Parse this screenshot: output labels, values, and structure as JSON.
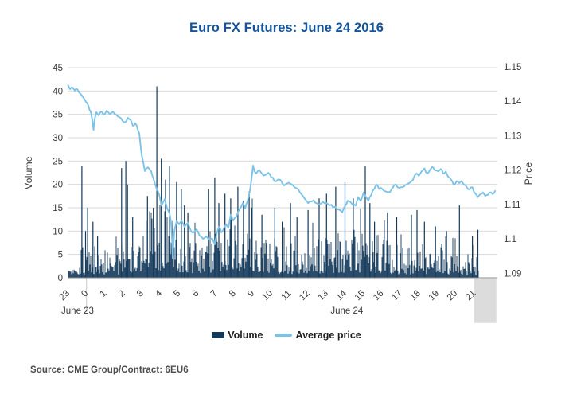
{
  "title": "Euro FX Futures: June 24 2016",
  "source": "Source: CME Group/Contract: 6EU6",
  "legend": [
    {
      "label": "Volume",
      "type": "bar",
      "color": "#13395B"
    },
    {
      "label": "Average price",
      "type": "line",
      "color": "#7CC3E8"
    }
  ],
  "colors": {
    "title": "#15549B",
    "bar": "#13395B",
    "line": "#7CC3E8",
    "grid": "#D9D9D9",
    "axis_line": "#8C8C8C",
    "separator": "#CBCBCB",
    "end_band": "#DCDCDC",
    "tick_text": "#3A3A3A"
  },
  "chart_data": {
    "type": "combo",
    "subtype": [
      "bar",
      "line"
    ],
    "title": "Euro FX Futures: June 24 2016",
    "grid": "horizontal-only",
    "legend_position": "bottom-center",
    "x_axis": {
      "unit": "hour of day (minute-level data), from 23:00 June 23 to ~21:15 June 24",
      "tick_labels": [
        "23",
        "0",
        "1",
        "2",
        "3",
        "4",
        "5",
        "6",
        "7",
        "8",
        "9",
        "10",
        "11",
        "12",
        "13",
        "14",
        "15",
        "16",
        "17",
        "18",
        "19",
        "20",
        "21"
      ],
      "tick_label_rotation_deg": -45,
      "date_labels": [
        {
          "label": "June 23",
          "center_t": 0.5
        },
        {
          "label": "June 24",
          "center_t": 15.1
        }
      ],
      "date_separators_t": [
        0,
        1
      ],
      "end_shaded_band_t": [
        22.1,
        23.2
      ]
    },
    "volume_axis": {
      "label": "Volume",
      "side": "left",
      "ticks": [
        45,
        40,
        35,
        30,
        25,
        20,
        15,
        10,
        5,
        0
      ],
      "range": [
        0,
        45
      ]
    },
    "price_axis": {
      "label": "Price",
      "side": "right",
      "ticks": [
        "1.15",
        "1.14",
        "1.13",
        "1.12",
        "1.11",
        "1.1",
        "1.09"
      ],
      "range": [
        1.09,
        1.15
      ]
    },
    "time_unit_note": "t = hours elapsed since 23:00 on June 23",
    "volume": {
      "name": "Volume",
      "style": "dense one-minute bars",
      "t_range": [
        0,
        22.22
      ],
      "envelope_hourly_typical_max": [
        3.5,
        8,
        6,
        11,
        16,
        15,
        9,
        10,
        14,
        14,
        11,
        8,
        8,
        9,
        10,
        11,
        11,
        8,
        7,
        8,
        6.5,
        6,
        4
      ],
      "spikes": [
        [
          0.75,
          24
        ],
        [
          0.95,
          10
        ],
        [
          1.06,
          15
        ],
        [
          1.35,
          12
        ],
        [
          1.6,
          9
        ],
        [
          2.9,
          23.5
        ],
        [
          3.13,
          25
        ],
        [
          3.22,
          20
        ],
        [
          3.5,
          13
        ],
        [
          4.3,
          17.5
        ],
        [
          4.62,
          15
        ],
        [
          4.81,
          41
        ],
        [
          5.05,
          25.5
        ],
        [
          5.28,
          21
        ],
        [
          5.5,
          24
        ],
        [
          5.88,
          20.5
        ],
        [
          6.14,
          19
        ],
        [
          6.3,
          15.5
        ],
        [
          6.49,
          14
        ],
        [
          7.6,
          19
        ],
        [
          7.95,
          21.5
        ],
        [
          8.17,
          16
        ],
        [
          8.5,
          18
        ],
        [
          8.81,
          17
        ],
        [
          9.2,
          19.5
        ],
        [
          9.5,
          16.5
        ],
        [
          9.81,
          18.5
        ],
        [
          9.95,
          15
        ],
        [
          10.5,
          13.5
        ],
        [
          11.2,
          15
        ],
        [
          11.6,
          12
        ],
        [
          12.05,
          16
        ],
        [
          12.4,
          13
        ],
        [
          13.0,
          14.5
        ],
        [
          13.6,
          17
        ],
        [
          14.0,
          18
        ],
        [
          14.5,
          19.5
        ],
        [
          15.0,
          20.5
        ],
        [
          15.45,
          17
        ],
        [
          16.1,
          24
        ],
        [
          16.35,
          16
        ],
        [
          16.6,
          12
        ],
        [
          17.3,
          14
        ],
        [
          17.8,
          13
        ],
        [
          18.6,
          13.5
        ],
        [
          18.9,
          14.5
        ],
        [
          19.3,
          12
        ],
        [
          19.9,
          11
        ],
        [
          20.5,
          10
        ],
        [
          21.2,
          15.5
        ],
        [
          21.9,
          9
        ],
        [
          22.2,
          10.3
        ]
      ]
    },
    "price_series": {
      "name": "Average price",
      "points": [
        [
          0,
          1.1447
        ],
        [
          0.11,
          1.1435
        ],
        [
          0.24,
          1.144
        ],
        [
          0.37,
          1.1431
        ],
        [
          0.5,
          1.1435
        ],
        [
          0.63,
          1.1424
        ],
        [
          0.75,
          1.1417
        ],
        [
          0.84,
          1.141
        ],
        [
          0.97,
          1.1398
        ],
        [
          1.1,
          1.1387
        ],
        [
          1.23,
          1.137
        ],
        [
          1.31,
          1.1347
        ],
        [
          1.38,
          1.1317
        ],
        [
          1.44,
          1.1347
        ],
        [
          1.53,
          1.1368
        ],
        [
          1.66,
          1.1359
        ],
        [
          1.79,
          1.137
        ],
        [
          1.92,
          1.1361
        ],
        [
          2.09,
          1.1373
        ],
        [
          2.26,
          1.1363
        ],
        [
          2.44,
          1.137
        ],
        [
          2.61,
          1.1361
        ],
        [
          2.78,
          1.1354
        ],
        [
          2.95,
          1.1343
        ],
        [
          3.13,
          1.134
        ],
        [
          3.25,
          1.1352
        ],
        [
          3.38,
          1.1347
        ],
        [
          3.51,
          1.1329
        ],
        [
          3.64,
          1.1336
        ],
        [
          3.77,
          1.1319
        ],
        [
          3.86,
          1.1306
        ],
        [
          3.99,
          1.1243
        ],
        [
          4.16,
          1.1197
        ],
        [
          4.33,
          1.1208
        ],
        [
          4.5,
          1.1197
        ],
        [
          4.63,
          1.1174
        ],
        [
          4.81,
          1.1144
        ],
        [
          4.94,
          1.1128
        ],
        [
          5.06,
          1.1097
        ],
        [
          5.24,
          1.1116
        ],
        [
          5.37,
          1.1088
        ],
        [
          5.5,
          1.1074
        ],
        [
          5.58,
          1.1047
        ],
        [
          5.63,
          1.1
        ],
        [
          5.67,
          1.0943
        ],
        [
          5.72,
          1.099
        ],
        [
          5.76,
          1.1023
        ],
        [
          5.88,
          1.1051
        ],
        [
          6.01,
          1.1042
        ],
        [
          6.14,
          1.1053
        ],
        [
          6.31,
          1.1035
        ],
        [
          6.49,
          1.1047
        ],
        [
          6.66,
          1.1023
        ],
        [
          6.79,
          1.1019
        ],
        [
          6.96,
          1.1028
        ],
        [
          7.13,
          1.1009
        ],
        [
          7.31,
          1.1
        ],
        [
          7.48,
          1.1007
        ],
        [
          7.65,
          1.0996
        ],
        [
          7.82,
          1.1
        ],
        [
          7.95,
          1.0984
        ],
        [
          8.04,
          1.1012
        ],
        [
          8.17,
          1.1035
        ],
        [
          8.3,
          1.1019
        ],
        [
          8.38,
          1.1023
        ],
        [
          8.56,
          1.1042
        ],
        [
          8.69,
          1.1033
        ],
        [
          8.81,
          1.107
        ],
        [
          8.94,
          1.1053
        ],
        [
          9.12,
          1.1065
        ],
        [
          9.29,
          1.1086
        ],
        [
          9.46,
          1.1104
        ],
        [
          9.59,
          1.1088
        ],
        [
          9.72,
          1.1109
        ],
        [
          9.85,
          1.1139
        ],
        [
          9.94,
          1.1174
        ],
        [
          10.02,
          1.1213
        ],
        [
          10.1,
          1.1196
        ],
        [
          10.19,
          1.119
        ],
        [
          10.35,
          1.12
        ],
        [
          10.5,
          1.119
        ],
        [
          10.67,
          1.1185
        ],
        [
          10.85,
          1.1192
        ],
        [
          11.0,
          1.118
        ],
        [
          11.27,
          1.1167
        ],
        [
          11.48,
          1.1172
        ],
        [
          11.7,
          1.1155
        ],
        [
          11.9,
          1.1162
        ],
        [
          12.13,
          1.1158
        ],
        [
          12.35,
          1.1148
        ],
        [
          12.56,
          1.1135
        ],
        [
          12.8,
          1.1118
        ],
        [
          13.0,
          1.1104
        ],
        [
          13.3,
          1.1112
        ],
        [
          13.56,
          1.11
        ],
        [
          13.8,
          1.1108
        ],
        [
          13.99,
          1.1104
        ],
        [
          14.2,
          1.1098
        ],
        [
          14.42,
          1.1093
        ],
        [
          14.65,
          1.1085
        ],
        [
          14.85,
          1.1077
        ],
        [
          15.0,
          1.1095
        ],
        [
          15.15,
          1.1111
        ],
        [
          15.4,
          1.11
        ],
        [
          15.58,
          1.1097
        ],
        [
          15.71,
          1.1121
        ],
        [
          15.85,
          1.111
        ],
        [
          16.01,
          1.1135
        ],
        [
          16.15,
          1.112
        ],
        [
          16.27,
          1.1111
        ],
        [
          16.5,
          1.114
        ],
        [
          16.7,
          1.1158
        ],
        [
          16.85,
          1.1145
        ],
        [
          17.0,
          1.1146
        ],
        [
          17.2,
          1.1138
        ],
        [
          17.43,
          1.1135
        ],
        [
          17.6,
          1.115
        ],
        [
          17.74,
          1.1158
        ],
        [
          17.95,
          1.1148
        ],
        [
          18.17,
          1.1151
        ],
        [
          18.4,
          1.116
        ],
        [
          18.6,
          1.1167
        ],
        [
          18.86,
          1.119
        ],
        [
          19.0,
          1.1183
        ],
        [
          19.16,
          1.1197
        ],
        [
          19.3,
          1.1205
        ],
        [
          19.46,
          1.119
        ],
        [
          19.6,
          1.12
        ],
        [
          19.72,
          1.1209
        ],
        [
          19.85,
          1.12
        ],
        [
          20.02,
          1.1197
        ],
        [
          20.18,
          1.1203
        ],
        [
          20.32,
          1.119
        ],
        [
          20.45,
          1.1195
        ],
        [
          20.58,
          1.1181
        ],
        [
          20.75,
          1.1172
        ],
        [
          20.88,
          1.1158
        ],
        [
          21.05,
          1.1168
        ],
        [
          21.19,
          1.1162
        ],
        [
          21.3,
          1.1168
        ],
        [
          21.44,
          1.1158
        ],
        [
          21.6,
          1.115
        ],
        [
          21.75,
          1.1144
        ],
        [
          21.9,
          1.115
        ],
        [
          22.05,
          1.1132
        ],
        [
          22.18,
          1.1121
        ],
        [
          22.35,
          1.113
        ],
        [
          22.48,
          1.1135
        ],
        [
          22.6,
          1.1125
        ],
        [
          22.74,
          1.1128
        ],
        [
          22.9,
          1.1135
        ],
        [
          23.0,
          1.113
        ],
        [
          23.13,
          1.1139
        ]
      ]
    }
  }
}
